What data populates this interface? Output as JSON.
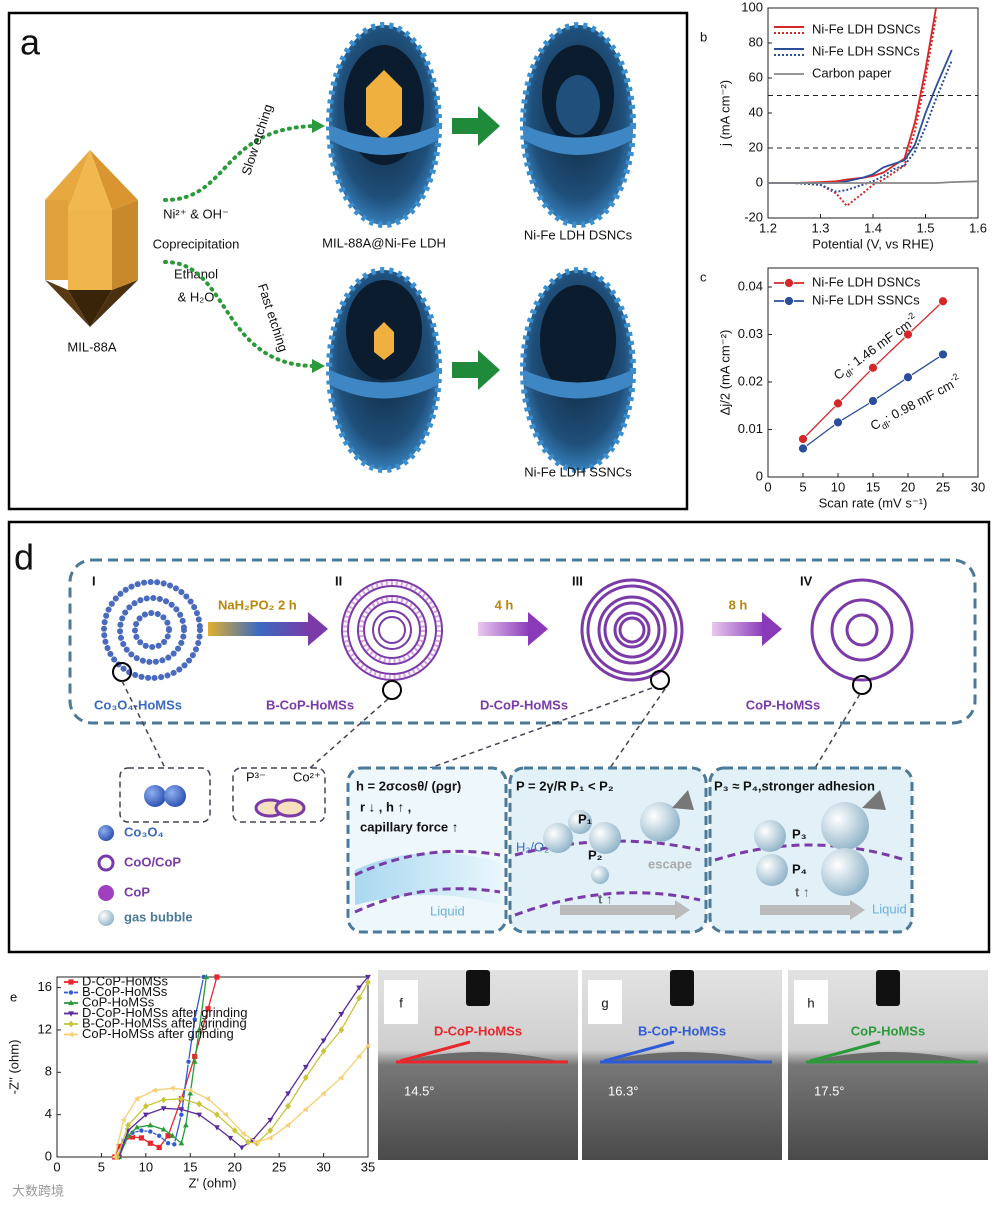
{
  "chart_data": [
    {
      "type": "line",
      "panel": "b",
      "x_label": "Potential (V, vs RHE)",
      "y_label": "j (mA cm⁻²)",
      "x": [
        1.2,
        1.25,
        1.3,
        1.33,
        1.35,
        1.38,
        1.4,
        1.42,
        1.44,
        1.46,
        1.48,
        1.5,
        1.52,
        1.55,
        1.6
      ],
      "series": [
        {
          "name": "Ni-Fe LDH DSNCs",
          "color": "#d62728",
          "values": [
            0,
            0,
            0.5,
            1,
            2,
            3,
            4,
            6,
            10,
            14,
            35,
            65,
            100,
            null,
            null
          ],
          "dotted_values": [
            0,
            0,
            -1,
            -6,
            -13,
            -6,
            -1,
            2,
            6,
            10,
            30,
            60,
            95,
            null,
            null
          ]
        },
        {
          "name": "Ni-Fe LDH SSNCs",
          "color": "#2a4d9c",
          "values": [
            0,
            0,
            0,
            0,
            1,
            3,
            5,
            9,
            11,
            13,
            22,
            40,
            55,
            76,
            null
          ],
          "dotted_values": [
            0,
            0,
            -1,
            -5,
            -4,
            -1,
            1,
            4,
            8,
            10,
            18,
            32,
            48,
            70,
            null
          ]
        },
        {
          "name": "Carbon paper",
          "color": "#888888",
          "values": [
            0,
            0,
            0,
            0,
            0,
            0,
            0,
            0,
            0,
            0,
            0,
            0,
            0,
            0.5,
            1
          ]
        }
      ],
      "xlim": [
        1.2,
        1.6
      ],
      "xticks": [
        1.2,
        1.3,
        1.4,
        1.5,
        1.6
      ],
      "ylim": [
        -20,
        100
      ],
      "yticks": [
        -20,
        0,
        20,
        40,
        60,
        80,
        100
      ],
      "hlines": [
        50,
        20
      ],
      "markers": false
    },
    {
      "type": "line",
      "panel": "c",
      "x_label": "Scan rate (mV s⁻¹)",
      "y_label": "Δj/2 (mA cm⁻²)",
      "x": [
        5,
        10,
        15,
        20,
        25
      ],
      "series": [
        {
          "name": "Ni-Fe LDH DSNCs",
          "color": "#d62728",
          "values": [
            0.008,
            0.0155,
            0.023,
            0.03,
            0.037
          ]
        },
        {
          "name": "Ni-Fe LDH SSNCs",
          "color": "#2a4d9c",
          "values": [
            0.006,
            0.0115,
            0.016,
            0.021,
            0.0258
          ]
        }
      ],
      "xlim": [
        0,
        30
      ],
      "xticks": [
        0,
        5,
        10,
        15,
        20,
        25,
        30
      ],
      "ylim": [
        0,
        0.044
      ],
      "yticks": [
        0,
        0.01,
        0.02,
        0.03,
        0.04
      ],
      "markers": true,
      "annotations": [
        {
          "parts": [
            {
              "text": "C"
            },
            {
              "text": "dl",
              "shift": "sub"
            },
            {
              "text": ": 1.46 mF cm"
            },
            {
              "text": "-2",
              "shift": "super"
            }
          ]
        },
        {
          "parts": [
            {
              "text": "C"
            },
            {
              "text": "dl",
              "shift": "sub"
            },
            {
              "text": ": 0.98 mF cm"
            },
            {
              "text": "-2",
              "shift": "super"
            }
          ]
        }
      ]
    },
    {
      "type": "line",
      "panel": "e",
      "x_label": "Z' (ohm)",
      "y_label": "-Z'' (ohm)",
      "series": [
        {
          "name": "D-CoP-HoMSs",
          "color": "#e8262b",
          "marker": "square",
          "x": [
            6.5,
            7,
            7.5,
            8.5,
            9.5,
            10.5,
            11.5,
            12.5,
            14,
            15.5,
            17,
            18
          ],
          "values": [
            0,
            1,
            1.5,
            1.9,
            1.8,
            1.3,
            0.9,
            2,
            5.5,
            9.5,
            14,
            17
          ]
        },
        {
          "name": "B-CoP-HoMSs",
          "color": "#2f5bd6",
          "marker": "circle",
          "x": [
            6.8,
            7.5,
            8.5,
            9.5,
            10.5,
            11.5,
            12.5,
            13.2,
            14,
            14.8,
            15.5,
            16.5
          ],
          "values": [
            0,
            1.5,
            2.3,
            2.5,
            2.4,
            2,
            1.3,
            1.2,
            4,
            9,
            13,
            17
          ]
        },
        {
          "name": "CoP-HoMSs",
          "color": "#2a9a3a",
          "marker": "triangle",
          "x": [
            7,
            8,
            9,
            10.5,
            12,
            13,
            14,
            14.5,
            15,
            15.5,
            16,
            16.8
          ],
          "values": [
            0,
            2,
            2.8,
            3,
            2.6,
            2,
            1.3,
            3,
            6,
            9,
            12,
            17
          ]
        },
        {
          "name": "D-CoP-HoMSs after grinding",
          "color": "#5b2a9e",
          "marker": "triangle-down",
          "x": [
            7,
            8,
            10,
            12,
            14,
            16,
            18,
            19.5,
            20.8,
            22,
            24,
            26,
            28,
            30,
            32,
            34,
            35
          ],
          "values": [
            0,
            2.5,
            4,
            4.6,
            4.5,
            4,
            2.8,
            1.8,
            0.9,
            1.6,
            3.5,
            6,
            8.5,
            11,
            13.5,
            16,
            17
          ]
        },
        {
          "name": "B-CoP-HoMSs after grinding",
          "color": "#c9c43a",
          "marker": "diamond",
          "x": [
            6.8,
            8,
            10,
            12,
            14,
            16,
            18,
            20,
            21.5,
            22.5,
            24,
            26,
            28,
            30,
            32,
            34,
            35
          ],
          "values": [
            0,
            3,
            4.8,
            5.4,
            5.5,
            5,
            4,
            2.5,
            1.4,
            1.3,
            2.5,
            4.8,
            7.5,
            10,
            12,
            15,
            16.5
          ]
        },
        {
          "name": "CoP-HoMSs after grinding",
          "color": "#f7cf74",
          "marker": "triangle-left",
          "x": [
            6.5,
            7.5,
            9,
            11,
            13,
            15,
            17,
            19,
            21,
            22.5,
            24,
            26,
            28,
            30,
            32,
            34,
            35
          ],
          "values": [
            0,
            3.5,
            5.5,
            6.3,
            6.5,
            6.3,
            5.5,
            4,
            2.2,
            1.4,
            1.8,
            3,
            4.5,
            6,
            7.5,
            9.5,
            10.5
          ]
        }
      ],
      "xlim": [
        0,
        35
      ],
      "xticks": [
        0,
        5,
        10,
        15,
        20,
        25,
        30,
        35
      ],
      "ylim": [
        0,
        17
      ],
      "yticks": [
        0,
        4,
        8,
        12,
        16
      ],
      "markers": true
    }
  ],
  "panel_a": {
    "letter": "a",
    "start": "MIL-88A",
    "reagent": "Ni²⁺ & OH⁻",
    "process": "Coprecipitation",
    "solvent_1": "Ethanol",
    "solvent_2": "& H₂O",
    "slow": "Slow etching",
    "fast": "Fast etching",
    "intermediate": "MIL-88A@Ni-Fe LDH",
    "product_top": "Ni-Fe LDH DSNCs",
    "product_bottom": "Ni-Fe LDH SSNCs"
  },
  "panel_d": {
    "letter": "d",
    "stages": [
      "I",
      "II",
      "III",
      "IV"
    ],
    "steps": [
      "NaH₂PO₂  2 h",
      "4 h",
      "8 h"
    ],
    "names": [
      "Co₃O₄-HoMSs",
      "B-CoP-HoMSs",
      "D-CoP-HoMSs",
      "CoP-HoMSs"
    ],
    "legend": [
      "Co₃O₄",
      "CoO/CoP",
      "CoP",
      "gas bubble"
    ],
    "ions": [
      "P³⁻",
      "Co²⁺"
    ],
    "box1": [
      "h = 2σcosθ/ (ρgr)",
      "r  ↓  ,   h  ↑  ,",
      "capillary force  ↑",
      "Liquid"
    ],
    "box2": [
      "P = 2γ/R    P₁ < P₂",
      "H₂/O₂",
      "P₁",
      "P₂",
      "escape",
      "t ↑"
    ],
    "box3": [
      "P₃ ≈ P₄,stronger adhesion",
      "P₃",
      "P₄",
      "t ↑",
      "Liquid"
    ]
  },
  "panel_fgh": [
    {
      "letter": "f",
      "sample": "D-CoP-HoMSs",
      "angle": "14.5°"
    },
    {
      "letter": "g",
      "sample": "B-CoP-HoMSs",
      "angle": "16.3°"
    },
    {
      "letter": "h",
      "sample": "CoP-HoMSs",
      "angle": "17.5°"
    }
  ],
  "watermark": "大数跨境"
}
